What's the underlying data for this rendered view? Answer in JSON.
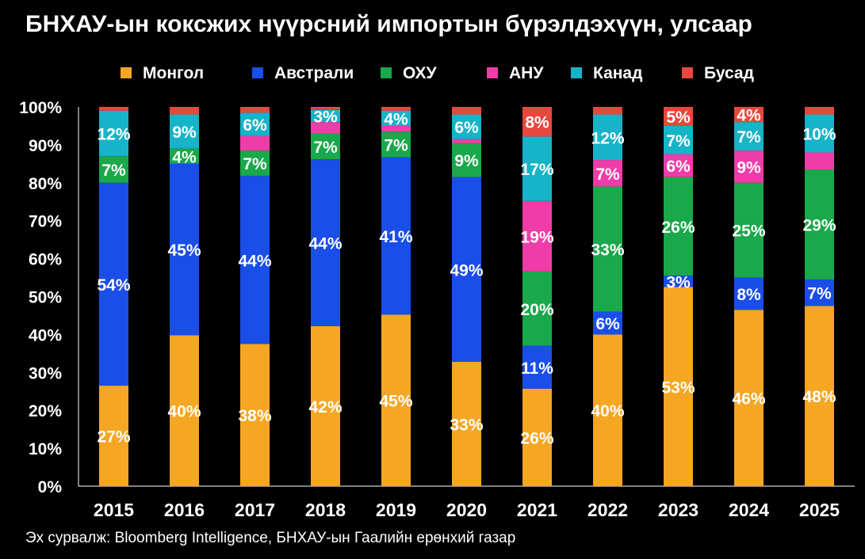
{
  "title": "БНХАУ-ын коксжих нүүрсний импортын бүрэлдэхүүн, улсаар",
  "source": "Эх сурвалж: Bloomberg Intelligence, БНХАУ-ын Гаалийн ерөнхий газар",
  "chart_data": {
    "type": "bar",
    "stacked": true,
    "categories": [
      "2015",
      "2016",
      "2017",
      "2018",
      "2019",
      "2020",
      "2021",
      "2022",
      "2023",
      "2024",
      "2025"
    ],
    "ylim": [
      0,
      100
    ],
    "yticks": [
      "0%",
      "10%",
      "20%",
      "30%",
      "40%",
      "50%",
      "60%",
      "70%",
      "80%",
      "90%",
      "100%"
    ],
    "grid": false,
    "legend": "top",
    "series": [
      {
        "name": "Монгол",
        "color": "#f5a623",
        "values": [
          26.5,
          39.8,
          37.5,
          42.2,
          45.2,
          32.8,
          25.7,
          40.0,
          52.5,
          46.5,
          47.5
        ],
        "labels": [
          "27%",
          "40%",
          "38%",
          "42%",
          "45%",
          "33%",
          "26%",
          "40%",
          "53%",
          "46%",
          "48%"
        ]
      },
      {
        "name": "Австрали",
        "color": "#1a4ee8",
        "values": [
          53.5,
          45.2,
          44.3,
          44.0,
          41.5,
          48.7,
          11.3,
          6.0,
          3.0,
          8.5,
          7.0
        ],
        "labels": [
          "54%",
          "45%",
          "44%",
          "44%",
          "41%",
          "49%",
          "11%",
          "6%",
          "3%",
          "8%",
          "7%"
        ]
      },
      {
        "name": "ОХУ",
        "color": "#19a84a",
        "values": [
          7.0,
          4.0,
          6.7,
          6.8,
          6.8,
          9.0,
          19.6,
          33.0,
          26.0,
          25.0,
          29.0
        ],
        "labels": [
          "7%",
          "4%",
          "7%",
          "7%",
          "7%",
          "9%",
          "20%",
          "33%",
          "26%",
          "25%",
          "29%"
        ]
      },
      {
        "name": "АНУ",
        "color": "#f03ca8",
        "values": [
          0.0,
          0.0,
          3.8,
          3.0,
          1.5,
          1.0,
          18.6,
          7.0,
          6.0,
          8.5,
          4.5
        ],
        "labels": [
          "",
          "",
          "",
          "",
          "",
          "",
          "19%",
          "7%",
          "6%",
          "9%",
          ""
        ]
      },
      {
        "name": "Канад",
        "color": "#17b3c8",
        "values": [
          12.0,
          9.0,
          6.2,
          3.2,
          4.0,
          6.5,
          17.0,
          12.0,
          7.5,
          7.5,
          10.0
        ],
        "labels": [
          "12%",
          "9%",
          "6%",
          "3%",
          "4%",
          "6%",
          "17%",
          "12%",
          "7%",
          "7%",
          "10%"
        ]
      },
      {
        "name": "Бусад",
        "color": "#e8473d",
        "values": [
          1.0,
          2.0,
          1.5,
          0.8,
          1.0,
          2.0,
          7.8,
          2.0,
          5.0,
          4.0,
          2.0
        ],
        "labels": [
          "",
          "",
          "",
          "",
          "",
          "",
          "8%",
          "",
          "5%",
          "4%",
          ""
        ]
      }
    ]
  }
}
